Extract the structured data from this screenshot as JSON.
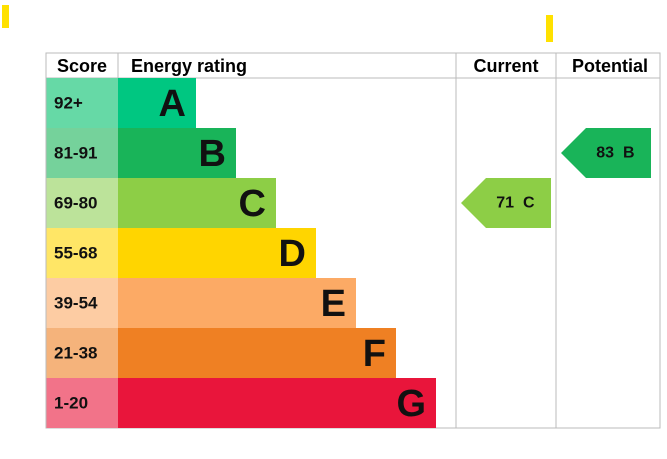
{
  "header": {
    "score": "Score",
    "rating": "Energy rating",
    "current": "Current",
    "potential": "Potential"
  },
  "bands": [
    {
      "range": "92+",
      "letter": "A",
      "color": "#00c781",
      "tint": "#66d9a6"
    },
    {
      "range": "81-91",
      "letter": "B",
      "color": "#19b459",
      "tint": "#75d29b"
    },
    {
      "range": "69-80",
      "letter": "C",
      "color": "#8dce46",
      "tint": "#bce39a"
    },
    {
      "range": "55-68",
      "letter": "D",
      "color": "#ffd500",
      "tint": "#ffe666"
    },
    {
      "range": "39-54",
      "letter": "E",
      "color": "#fcaa65",
      "tint": "#fdcca3"
    },
    {
      "range": "21-38",
      "letter": "F",
      "color": "#ef8023",
      "tint": "#f5b37b"
    },
    {
      "range": "1-20",
      "letter": "G",
      "color": "#e9153b",
      "tint": "#f27389"
    }
  ],
  "current": {
    "value": 71,
    "letter": "C"
  },
  "potential": {
    "value": 83,
    "letter": "B"
  }
}
